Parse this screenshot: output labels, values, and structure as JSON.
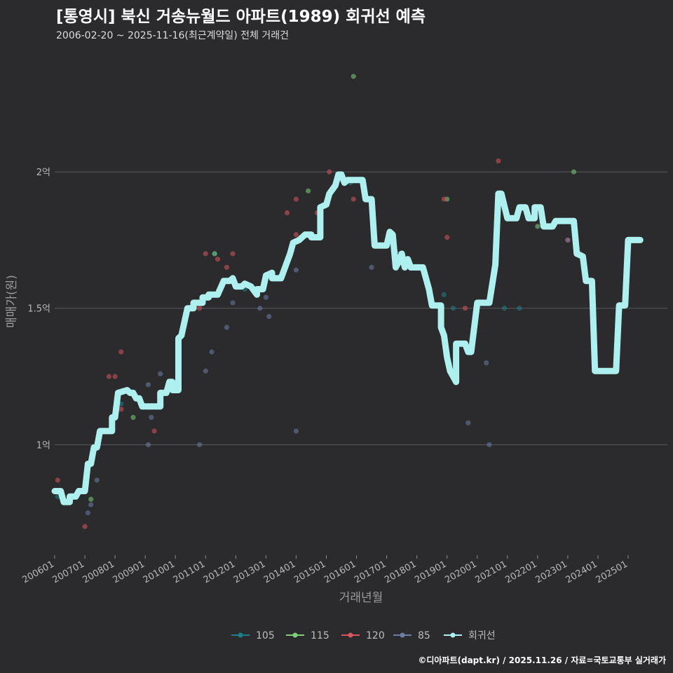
{
  "header": {
    "title": "[통영시] 북신 거송뉴월드 아파트(1989) 회귀선 예측",
    "subtitle": "2006-02-20 ~ 2025-11-16(최근계약일) 전체 거래건"
  },
  "caption": "©디아파트(dapt.kr) / 2025.11.26 / 자료=국토교통부 실거래가",
  "colors": {
    "background": "#2b2b2d",
    "grid": "#5a5a5c",
    "s105": "#1f7f86",
    "s115": "#7ed07a",
    "s120": "#d9565f",
    "s85": "#6c7ea8",
    "trend": "#aef0f0"
  },
  "chart_data": {
    "type": "scatter",
    "title": "[통영시] 북신 거송뉴월드 아파트(1989) 회귀선 예측",
    "xlabel": "거래년월",
    "ylabel": "매매가(원)",
    "xlim": [
      2006.0,
      2026.3
    ],
    "ylim": [
      6000,
      24500
    ],
    "y_ticks": [
      {
        "value": 10000,
        "label": "1억"
      },
      {
        "value": 15000,
        "label": "1.5억"
      },
      {
        "value": 20000,
        "label": "2억"
      }
    ],
    "x_ticks": [
      "200601",
      "200701",
      "200801",
      "200901",
      "201001",
      "201101",
      "201201",
      "201301",
      "201401",
      "201501",
      "201601",
      "201701",
      "201801",
      "201901",
      "202001",
      "202101",
      "202201",
      "202301",
      "202401",
      "202501"
    ],
    "legend": [
      {
        "key": "s105",
        "label": "105"
      },
      {
        "key": "s115",
        "label": "115"
      },
      {
        "key": "s120",
        "label": "120"
      },
      {
        "key": "s85",
        "label": "85"
      },
      {
        "key": "trend",
        "label": "회귀선"
      }
    ],
    "series": [
      {
        "name": "105",
        "key": "s105",
        "points": [
          [
            2006.1,
            8100
          ],
          [
            2008.2,
            11500
          ],
          [
            2011.3,
            17000
          ],
          [
            2012.3,
            15700
          ],
          [
            2014.9,
            18800
          ],
          [
            2015.8,
            19600
          ],
          [
            2018.9,
            15500
          ],
          [
            2019.2,
            15000
          ],
          [
            2020.9,
            15000
          ],
          [
            2021.4,
            15000
          ]
        ]
      },
      {
        "name": "115",
        "key": "s115",
        "points": [
          [
            2007.2,
            8000
          ],
          [
            2008.6,
            11000
          ],
          [
            2011.3,
            17000
          ],
          [
            2014.4,
            19300
          ],
          [
            2015.9,
            23500
          ],
          [
            2019.0,
            19000
          ],
          [
            2022.0,
            18000
          ],
          [
            2023.2,
            20000
          ]
        ]
      },
      {
        "name": "120",
        "key": "s120",
        "points": [
          [
            2006.1,
            8700
          ],
          [
            2007.0,
            7000
          ],
          [
            2007.8,
            12500
          ],
          [
            2008.0,
            12500
          ],
          [
            2008.2,
            13400
          ],
          [
            2008.2,
            11300
          ],
          [
            2009.3,
            10500
          ],
          [
            2010.8,
            15000
          ],
          [
            2011.0,
            17000
          ],
          [
            2011.4,
            16800
          ],
          [
            2011.7,
            16500
          ],
          [
            2011.9,
            17000
          ],
          [
            2013.7,
            18500
          ],
          [
            2014.0,
            17700
          ],
          [
            2014.0,
            19000
          ],
          [
            2014.7,
            18500
          ],
          [
            2015.1,
            20000
          ],
          [
            2015.9,
            19000
          ],
          [
            2018.9,
            19000
          ],
          [
            2019.0,
            17600
          ],
          [
            2019.6,
            15000
          ],
          [
            2020.7,
            20400
          ],
          [
            2023.0,
            17500
          ]
        ]
      },
      {
        "name": "85",
        "key": "s85",
        "points": [
          [
            2007.1,
            7500
          ],
          [
            2007.2,
            7800
          ],
          [
            2007.4,
            8700
          ],
          [
            2008.1,
            11500
          ],
          [
            2009.1,
            10000
          ],
          [
            2009.2,
            11000
          ],
          [
            2009.1,
            12200
          ],
          [
            2009.5,
            12600
          ],
          [
            2010.8,
            10000
          ],
          [
            2011.0,
            12700
          ],
          [
            2011.2,
            13400
          ],
          [
            2011.7,
            14300
          ],
          [
            2011.9,
            15200
          ],
          [
            2012.8,
            15000
          ],
          [
            2013.0,
            15400
          ],
          [
            2013.1,
            14700
          ],
          [
            2014.0,
            10500
          ],
          [
            2014.0,
            16400
          ],
          [
            2016.5,
            16500
          ],
          [
            2017.4,
            17000
          ],
          [
            2017.6,
            16700
          ],
          [
            2019.7,
            10800
          ],
          [
            2020.3,
            13000
          ],
          [
            2020.4,
            10000
          ],
          [
            2023.0,
            17500
          ],
          [
            2023.4,
            17000
          ]
        ]
      }
    ],
    "trend": {
      "name": "회귀선",
      "key": "trend",
      "points": [
        [
          2006.0,
          8300
        ],
        [
          2006.2,
          8300
        ],
        [
          2006.3,
          7900
        ],
        [
          2006.5,
          7900
        ],
        [
          2006.5,
          8100
        ],
        [
          2006.7,
          8100
        ],
        [
          2006.8,
          8300
        ],
        [
          2007.0,
          8300
        ],
        [
          2007.1,
          9300
        ],
        [
          2007.2,
          9300
        ],
        [
          2007.3,
          9900
        ],
        [
          2007.4,
          9900
        ],
        [
          2007.5,
          10500
        ],
        [
          2007.9,
          10500
        ],
        [
          2007.9,
          11000
        ],
        [
          2008.0,
          11000
        ],
        [
          2008.1,
          11900
        ],
        [
          2008.4,
          12000
        ],
        [
          2008.5,
          11900
        ],
        [
          2008.6,
          11900
        ],
        [
          2008.7,
          11700
        ],
        [
          2008.8,
          11700
        ],
        [
          2008.9,
          11400
        ],
        [
          2009.3,
          11400
        ],
        [
          2009.5,
          11400
        ],
        [
          2009.5,
          11900
        ],
        [
          2009.7,
          11900
        ],
        [
          2009.8,
          12300
        ],
        [
          2009.9,
          12300
        ],
        [
          2009.9,
          12000
        ],
        [
          2010.1,
          12000
        ],
        [
          2010.1,
          13900
        ],
        [
          2010.2,
          14000
        ],
        [
          2010.3,
          14500
        ],
        [
          2010.4,
          15000
        ],
        [
          2010.6,
          15000
        ],
        [
          2010.6,
          15200
        ],
        [
          2010.9,
          15200
        ],
        [
          2010.9,
          15400
        ],
        [
          2011.1,
          15400
        ],
        [
          2011.1,
          15500
        ],
        [
          2011.4,
          15500
        ],
        [
          2011.6,
          16000
        ],
        [
          2011.8,
          16000
        ],
        [
          2011.9,
          16100
        ],
        [
          2012.0,
          15800
        ],
        [
          2012.2,
          15800
        ],
        [
          2012.3,
          15900
        ],
        [
          2012.5,
          15800
        ],
        [
          2012.7,
          15500
        ],
        [
          2012.7,
          15700
        ],
        [
          2012.9,
          15700
        ],
        [
          2013.0,
          16200
        ],
        [
          2013.2,
          16300
        ],
        [
          2013.2,
          16100
        ],
        [
          2013.5,
          16100
        ],
        [
          2013.7,
          16700
        ],
        [
          2013.8,
          17000
        ],
        [
          2013.9,
          17400
        ],
        [
          2014.1,
          17500
        ],
        [
          2014.3,
          17700
        ],
        [
          2014.5,
          17700
        ],
        [
          2014.5,
          17600
        ],
        [
          2014.8,
          17600
        ],
        [
          2014.8,
          18700
        ],
        [
          2015.0,
          18800
        ],
        [
          2015.1,
          19200
        ],
        [
          2015.3,
          19500
        ],
        [
          2015.4,
          19900
        ],
        [
          2015.5,
          19900
        ],
        [
          2015.6,
          19600
        ],
        [
          2015.7,
          19700
        ],
        [
          2015.8,
          19700
        ],
        [
          2016.0,
          19700
        ],
        [
          2016.2,
          19700
        ],
        [
          2016.3,
          19000
        ],
        [
          2016.5,
          19000
        ],
        [
          2016.6,
          17300
        ],
        [
          2017.0,
          17300
        ],
        [
          2017.1,
          17800
        ],
        [
          2017.2,
          17700
        ],
        [
          2017.3,
          16500
        ],
        [
          2017.4,
          16700
        ],
        [
          2017.5,
          17000
        ],
        [
          2017.6,
          16500
        ],
        [
          2017.7,
          16800
        ],
        [
          2017.8,
          16500
        ],
        [
          2018.2,
          16500
        ],
        [
          2018.4,
          15700
        ],
        [
          2018.5,
          15100
        ],
        [
          2018.8,
          15100
        ],
        [
          2018.8,
          14300
        ],
        [
          2018.9,
          14000
        ],
        [
          2019.0,
          13200
        ],
        [
          2019.1,
          12700
        ],
        [
          2019.2,
          12500
        ],
        [
          2019.3,
          12300
        ],
        [
          2019.3,
          13700
        ],
        [
          2019.6,
          13700
        ],
        [
          2019.7,
          13400
        ],
        [
          2019.8,
          13400
        ],
        [
          2020.0,
          15200
        ],
        [
          2020.4,
          15200
        ],
        [
          2020.6,
          16600
        ],
        [
          2020.7,
          19200
        ],
        [
          2020.8,
          19200
        ],
        [
          2021.0,
          18300
        ],
        [
          2021.3,
          18300
        ],
        [
          2021.4,
          18700
        ],
        [
          2021.6,
          18700
        ],
        [
          2021.7,
          18300
        ],
        [
          2021.9,
          18300
        ],
        [
          2021.9,
          18700
        ],
        [
          2022.1,
          18700
        ],
        [
          2022.2,
          18000
        ],
        [
          2022.5,
          18000
        ],
        [
          2022.6,
          18200
        ],
        [
          2023.2,
          18200
        ],
        [
          2023.3,
          17000
        ],
        [
          2023.5,
          16900
        ],
        [
          2023.6,
          16000
        ],
        [
          2023.8,
          16000
        ],
        [
          2023.9,
          12700
        ],
        [
          2024.6,
          12700
        ],
        [
          2024.7,
          15100
        ],
        [
          2024.9,
          15100
        ],
        [
          2025.0,
          17500
        ],
        [
          2025.4,
          17500
        ]
      ]
    }
  }
}
